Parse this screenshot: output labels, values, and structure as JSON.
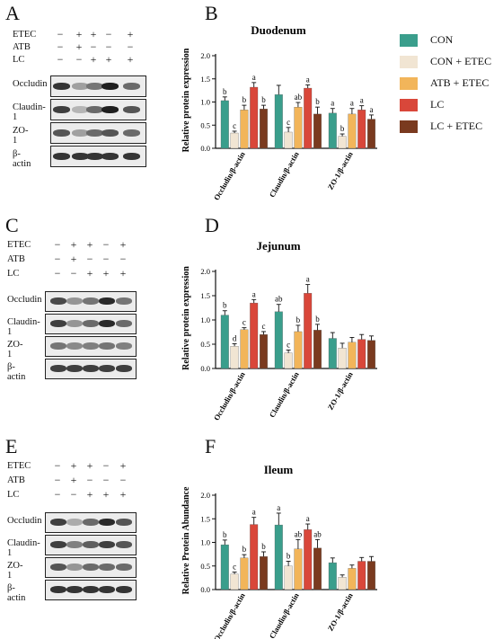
{
  "panel_letters": {
    "A": "A",
    "B": "B",
    "C": "C",
    "D": "D",
    "E": "E",
    "F": "F"
  },
  "blots": [
    {
      "id": "A",
      "treatment_rows": [
        {
          "label": "ETEC",
          "signs": [
            "−",
            "+",
            "+",
            "−",
            "+"
          ]
        },
        {
          "label": "ATB",
          "signs": [
            "−",
            "+",
            "−",
            "−",
            "−"
          ]
        },
        {
          "label": "LC",
          "signs": [
            "−",
            "−",
            "+",
            "+",
            "+"
          ]
        }
      ],
      "protein_rows": [
        "Occludin",
        "Claudin-1",
        "ZO-1",
        "β-actin"
      ]
    },
    {
      "id": "C",
      "treatment_rows": [
        {
          "label": "ETEC",
          "signs": [
            "−",
            "+",
            "+",
            "−",
            "+"
          ]
        },
        {
          "label": "ATB",
          "signs": [
            "−",
            "+",
            "−",
            "−",
            "−"
          ]
        },
        {
          "label": "LC",
          "signs": [
            "−",
            "−",
            "+",
            "+",
            "+"
          ]
        }
      ],
      "protein_rows": [
        "Occludin",
        "Claudin-1",
        "ZO-1",
        "β-actin"
      ]
    },
    {
      "id": "E",
      "treatment_rows": [
        {
          "label": "ETEC",
          "signs": [
            "−",
            "+",
            "+",
            "−",
            "+"
          ]
        },
        {
          "label": "ATB",
          "signs": [
            "−",
            "+",
            "−",
            "−",
            "−"
          ]
        },
        {
          "label": "LC",
          "signs": [
            "−",
            "−",
            "+",
            "+",
            "+"
          ]
        }
      ],
      "protein_rows": [
        "Occludin",
        "Claudin-1",
        "ZO-1",
        "β-actin"
      ]
    }
  ],
  "legend": [
    {
      "label": "CON",
      "color": "#3a9e8c"
    },
    {
      "label": "CON + ETEC",
      "color": "#f1e5d3"
    },
    {
      "label": "ATB + ETEC",
      "color": "#f2b55a"
    },
    {
      "label": "LC",
      "color": "#d9473a"
    },
    {
      "label": "LC + ETEC",
      "color": "#7a3a1f"
    }
  ],
  "chart_data": [
    {
      "type": "bar",
      "panel": "B",
      "title": "Duodenum",
      "ylabel": "Relative protein expression",
      "ylim": [
        0,
        2.0
      ],
      "yticks": [
        "0.0",
        "0.5",
        "1.0",
        "1.5",
        "2.0"
      ],
      "categories": [
        "Occludin/β-actin",
        "Claudin/β-actin",
        "ZO-1/β-actin"
      ],
      "series": [
        {
          "name": "CON",
          "values": [
            1.03,
            1.16,
            0.76
          ],
          "errors": [
            0.08,
            0.2,
            0.1
          ],
          "letters": [
            "b",
            "",
            "a"
          ]
        },
        {
          "name": "CON + ETEC",
          "values": [
            0.33,
            0.35,
            0.26
          ],
          "errors": [
            0.04,
            0.1,
            0.05
          ],
          "letters": [
            "c",
            "c",
            "b"
          ]
        },
        {
          "name": "ATB + ETEC",
          "values": [
            0.83,
            0.89,
            0.74
          ],
          "errors": [
            0.1,
            0.1,
            0.12
          ],
          "letters": [
            "b",
            "ab",
            "a"
          ]
        },
        {
          "name": "LC",
          "values": [
            1.32,
            1.3,
            0.83
          ],
          "errors": [
            0.1,
            0.07,
            0.09
          ],
          "letters": [
            "a",
            "a",
            "a"
          ]
        },
        {
          "name": "LC + ETEC",
          "values": [
            0.85,
            0.74,
            0.63
          ],
          "errors": [
            0.08,
            0.15,
            0.09
          ],
          "letters": [
            "b",
            "b",
            "a"
          ]
        }
      ]
    },
    {
      "type": "bar",
      "panel": "D",
      "title": "Jejunum",
      "ylabel": "Relative protein expression",
      "ylim": [
        0,
        2.0
      ],
      "yticks": [
        "0.0",
        "0.5",
        "1.0",
        "1.5",
        "2.0"
      ],
      "categories": [
        "Occludin/β-actin",
        "Claudin/β-actin",
        "ZO-1/β-actin"
      ],
      "series": [
        {
          "name": "CON",
          "values": [
            1.1,
            1.17,
            0.62
          ],
          "errors": [
            0.09,
            0.15,
            0.12
          ],
          "letters": [
            "b",
            "ab",
            ""
          ]
        },
        {
          "name": "CON + ETEC",
          "values": [
            0.46,
            0.32,
            0.42
          ],
          "errors": [
            0.05,
            0.06,
            0.1
          ],
          "letters": [
            "d",
            "c",
            ""
          ]
        },
        {
          "name": "ATB + ETEC",
          "values": [
            0.8,
            0.76,
            0.54
          ],
          "errors": [
            0.04,
            0.13,
            0.1
          ],
          "letters": [
            "c",
            "b",
            ""
          ]
        },
        {
          "name": "LC",
          "values": [
            1.35,
            1.55,
            0.6
          ],
          "errors": [
            0.07,
            0.18,
            0.1
          ],
          "letters": [
            "a",
            "a",
            ""
          ]
        },
        {
          "name": "LC + ETEC",
          "values": [
            0.7,
            0.79,
            0.58
          ],
          "errors": [
            0.06,
            0.12,
            0.09
          ],
          "letters": [
            "c",
            "b",
            ""
          ]
        }
      ]
    },
    {
      "type": "bar",
      "panel": "F",
      "title": "Ileum",
      "ylabel": "Relative Protein Abundance",
      "ylim": [
        0,
        2.0
      ],
      "yticks": [
        "0.0",
        "0.5",
        "1.0",
        "1.5",
        "2.0"
      ],
      "categories": [
        "Occludin/β-actin",
        "Claudin/β-actin",
        "ZO-1/β-actin"
      ],
      "series": [
        {
          "name": "CON",
          "values": [
            0.95,
            1.37,
            0.57
          ],
          "errors": [
            0.1,
            0.25,
            0.1
          ],
          "letters": [
            "b",
            "a",
            ""
          ]
        },
        {
          "name": "CON + ETEC",
          "values": [
            0.33,
            0.5,
            0.26
          ],
          "errors": [
            0.04,
            0.1,
            0.05
          ],
          "letters": [
            "c",
            "b",
            ""
          ]
        },
        {
          "name": "ATB + ETEC",
          "values": [
            0.67,
            0.86,
            0.45
          ],
          "errors": [
            0.07,
            0.2,
            0.07
          ],
          "letters": [
            "b",
            "ab",
            ""
          ]
        },
        {
          "name": "LC",
          "values": [
            1.38,
            1.27,
            0.6
          ],
          "errors": [
            0.15,
            0.12,
            0.08
          ],
          "letters": [
            "a",
            "a",
            ""
          ]
        },
        {
          "name": "LC + ETEC",
          "values": [
            0.7,
            0.88,
            0.6
          ],
          "errors": [
            0.1,
            0.18,
            0.1
          ],
          "letters": [
            "b",
            "ab",
            ""
          ]
        }
      ]
    }
  ]
}
